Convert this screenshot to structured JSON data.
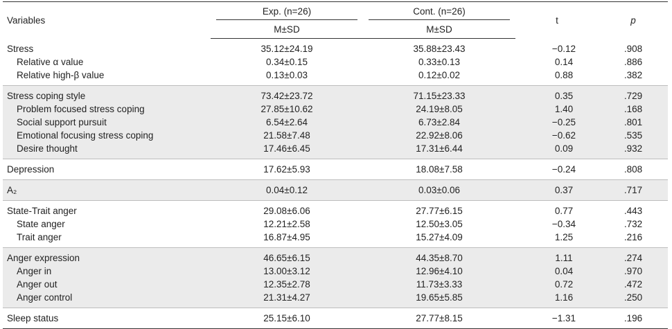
{
  "header": {
    "variables": "Variables",
    "exp": "Exp. (n=26)",
    "cont": "Cont. (n=26)",
    "msd": "M±SD",
    "t": "t",
    "p": "p"
  },
  "groups": [
    {
      "shade": false,
      "rows": [
        {
          "label": "Stress",
          "sub": false,
          "exp": "35.12±24.19",
          "cont": "35.88±23.43",
          "t": "−0.12",
          "p": ".908"
        },
        {
          "label": "Relative α value",
          "sub": true,
          "exp": "0.34±0.15",
          "cont": "0.33±0.13",
          "t": "0.14",
          "p": ".886"
        },
        {
          "label": "Relative high-β value",
          "sub": true,
          "exp": "0.13±0.03",
          "cont": "0.12±0.02",
          "t": "0.88",
          "p": ".382"
        }
      ]
    },
    {
      "shade": true,
      "rows": [
        {
          "label": "Stress coping style",
          "sub": false,
          "exp": "73.42±23.72",
          "cont": "71.15±23.33",
          "t": "0.35",
          "p": ".729"
        },
        {
          "label": "Problem focused stress coping",
          "sub": true,
          "exp": "27.85±10.62",
          "cont": "24.19±8.05",
          "t": "1.40",
          "p": ".168"
        },
        {
          "label": "Social support pursuit",
          "sub": true,
          "exp": "6.54±2.64",
          "cont": "6.73±2.84",
          "t": "−0.25",
          "p": ".801"
        },
        {
          "label": "Emotional focusing stress coping",
          "sub": true,
          "exp": "21.58±7.48",
          "cont": "22.92±8.06",
          "t": "−0.62",
          "p": ".535"
        },
        {
          "label": "Desire thought",
          "sub": true,
          "exp": "17.46±6.45",
          "cont": "17.31±6.44",
          "t": "0.09",
          "p": ".932"
        }
      ]
    },
    {
      "shade": false,
      "rows": [
        {
          "label": "Depression",
          "sub": false,
          "exp": "17.62±5.93",
          "cont": "18.08±7.58",
          "t": "−0.24",
          "p": ".808"
        }
      ]
    },
    {
      "shade": true,
      "rows": [
        {
          "label": "A₂",
          "sub": false,
          "exp": "0.04±0.12",
          "cont": "0.03±0.06",
          "t": "0.37",
          "p": ".717"
        }
      ]
    },
    {
      "shade": false,
      "rows": [
        {
          "label": "State-Trait anger",
          "sub": false,
          "exp": "29.08±6.06",
          "cont": "27.77±6.15",
          "t": "0.77",
          "p": ".443"
        },
        {
          "label": "State anger",
          "sub": true,
          "exp": "12.21±2.58",
          "cont": "12.50±3.05",
          "t": "−0.34",
          "p": ".732"
        },
        {
          "label": "Trait anger",
          "sub": true,
          "exp": "16.87±4.95",
          "cont": "15.27±4.09",
          "t": "1.25",
          "p": ".216"
        }
      ]
    },
    {
      "shade": true,
      "rows": [
        {
          "label": "Anger expression",
          "sub": false,
          "exp": "46.65±6.15",
          "cont": "44.35±8.70",
          "t": "1.11",
          "p": ".274"
        },
        {
          "label": "Anger in",
          "sub": true,
          "exp": "13.00±3.12",
          "cont": "12.96±4.10",
          "t": "0.04",
          "p": ".970"
        },
        {
          "label": "Anger out",
          "sub": true,
          "exp": "12.35±2.78",
          "cont": "11.73±3.33",
          "t": "0.72",
          "p": ".472"
        },
        {
          "label": "Anger control",
          "sub": true,
          "exp": "21.31±4.27",
          "cont": "19.65±5.85",
          "t": "1.16",
          "p": ".250"
        }
      ]
    },
    {
      "shade": false,
      "rows": [
        {
          "label": "Sleep status",
          "sub": false,
          "exp": "25.15±6.10",
          "cont": "27.77±8.15",
          "t": "−1.31",
          "p": ".196"
        }
      ]
    }
  ]
}
